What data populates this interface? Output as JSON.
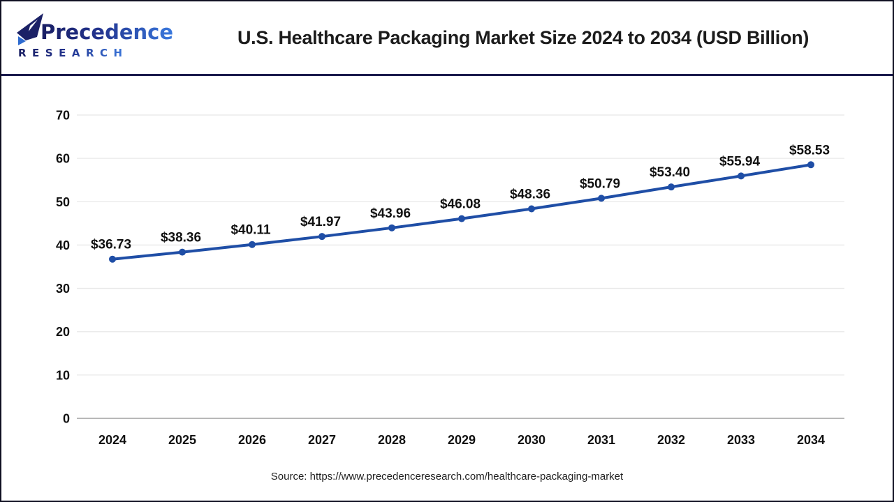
{
  "header": {
    "logo": {
      "wordmark": "Precedence",
      "subtext": "RESEARCH",
      "gradient_start": "#181d62",
      "gradient_end": "#3a79de"
    },
    "title": "U.S. Healthcare Packaging Market Size 2024 to 2034 (USD Billion)"
  },
  "chart_data": {
    "type": "line",
    "title": "U.S. Healthcare Packaging Market Size 2024 to 2034 (USD Billion)",
    "categories": [
      "2024",
      "2025",
      "2026",
      "2027",
      "2028",
      "2029",
      "2030",
      "2031",
      "2032",
      "2033",
      "2034"
    ],
    "values": [
      36.73,
      38.36,
      40.11,
      41.97,
      43.96,
      46.08,
      48.36,
      50.79,
      53.4,
      55.94,
      58.53
    ],
    "data_labels": [
      "$36.73",
      "$38.36",
      "$40.11",
      "$41.97",
      "$43.96",
      "$46.08",
      "$48.36",
      "$50.79",
      "$53.40",
      "$55.94",
      "$58.53"
    ],
    "xlabel": "",
    "ylabel": "",
    "ylim": [
      0,
      70
    ],
    "ytick_interval": 10,
    "grid": true,
    "legend_position": "none",
    "line_color": "#1f4ea6",
    "point_color": "#1f4ea6",
    "grid_color": "#e8e8e8",
    "zero_line_color": "#b8b8b8",
    "tick_label_color": "#101010",
    "data_label_color": "#111111"
  },
  "footer": {
    "source": "Source: https://www.precedenceresearch.com/healthcare-packaging-market"
  }
}
